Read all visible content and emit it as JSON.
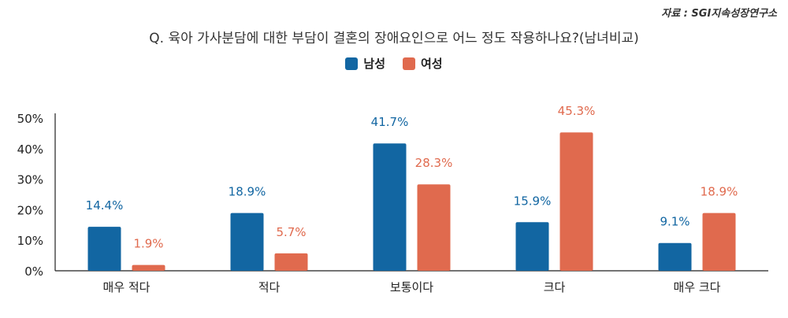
{
  "source": "자료 : SGI지속성장연구소",
  "chart_data": {
    "type": "bar",
    "title": "Q. 육아 가사분담에 대한 부담이 결혼의 장애요인으로 어느 정도 작용하나요?(남녀비교)",
    "categories": [
      "매우 적다",
      "적다",
      "보통이다",
      "크다",
      "매우 크다"
    ],
    "series": [
      {
        "name": "남성",
        "color": "#1266a2",
        "values": [
          14.4,
          18.9,
          41.7,
          15.9,
          9.1
        ]
      },
      {
        "name": "여성",
        "color": "#e06a4e",
        "values": [
          1.9,
          5.7,
          28.3,
          45.3,
          18.9
        ]
      }
    ],
    "value_suffix": "%",
    "ylim": [
      0,
      50
    ],
    "yticks": [
      0,
      10,
      20,
      30,
      40,
      50
    ],
    "ytick_labels": [
      "0%",
      "10%",
      "20%",
      "30%",
      "40%",
      "50%"
    ],
    "xlabel": "",
    "ylabel": "",
    "legend_position": "top-center"
  }
}
